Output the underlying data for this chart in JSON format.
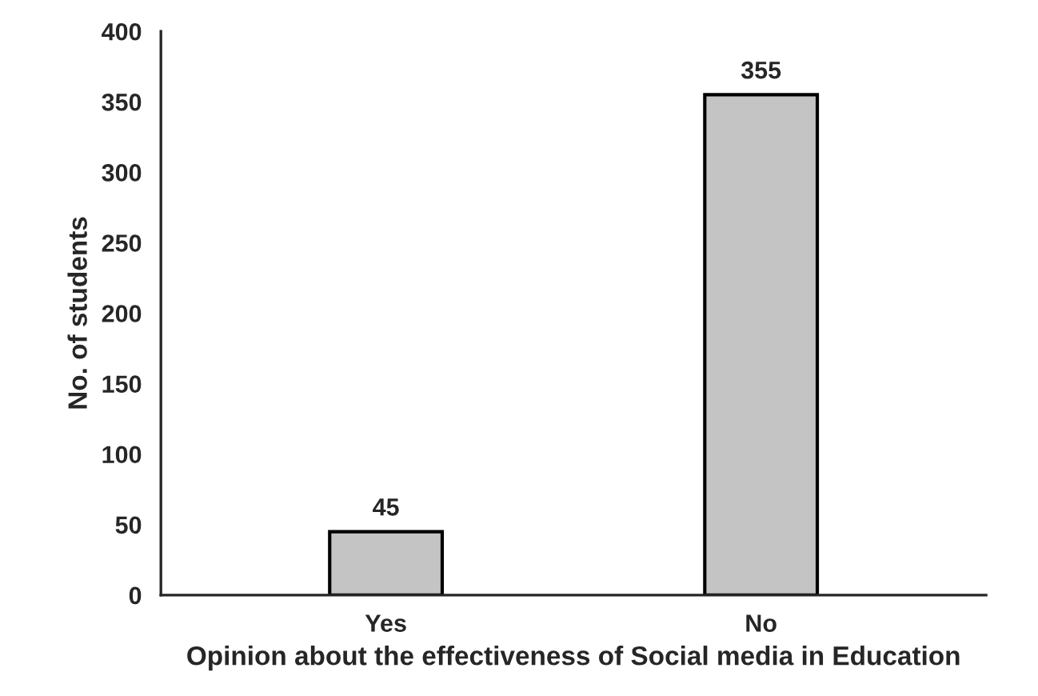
{
  "chart_data": {
    "type": "bar",
    "xlabel": "Opinion about the effectiveness of Social media in Education",
    "ylabel": "No. of students",
    "categories": [
      "Yes",
      "No"
    ],
    "values": [
      45,
      355
    ],
    "color": "#c4c4c4",
    "ylim": [
      0,
      400
    ],
    "yticks": [
      0,
      50,
      100,
      150,
      200,
      250,
      300,
      350,
      400
    ],
    "grid": false,
    "data_labels": true
  }
}
